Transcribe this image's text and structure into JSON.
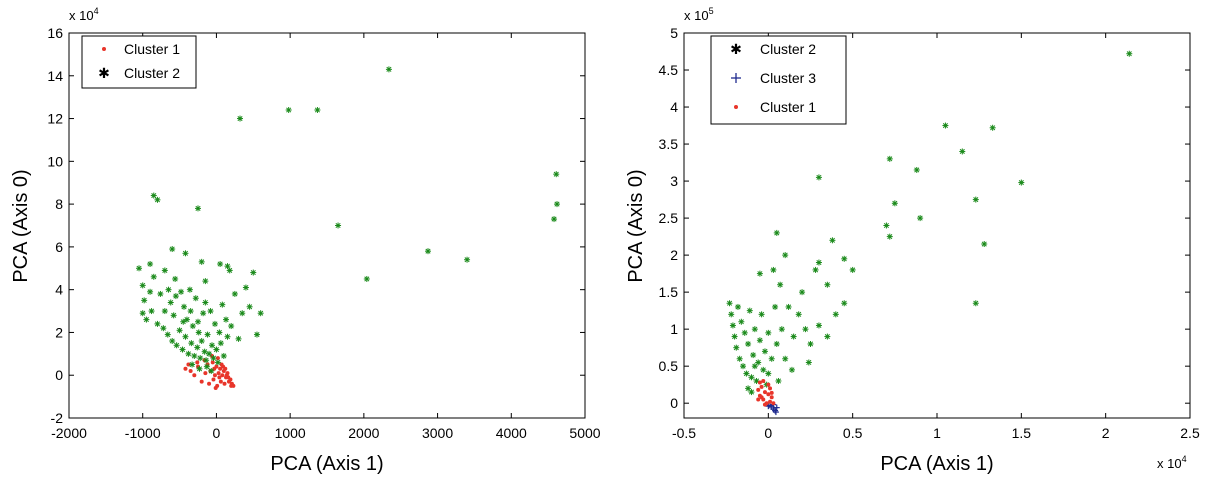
{
  "chart_data": [
    {
      "type": "scatter",
      "xlabel": "PCA (Axis 1)",
      "ylabel": "PCA (Axis 0)",
      "xlim": [
        -2000,
        5000
      ],
      "ylim": [
        -2,
        16
      ],
      "x_ticks": [
        "-2000",
        "-1000",
        "0",
        "1000",
        "2000",
        "3000",
        "4000",
        "5000"
      ],
      "y_ticks": [
        "-2",
        "0",
        "2",
        "4",
        "6",
        "8",
        "10",
        "12",
        "14",
        "16"
      ],
      "y_multiplier": "x 10",
      "y_multiplier_exp": "4",
      "grid": false,
      "legend_position": "top-left",
      "legend": [
        "Cluster 1",
        "Cluster 2"
      ],
      "series": [
        {
          "name": "Cluster 1",
          "marker": "dot",
          "color": "#e8352a",
          "points": [
            [
              -350,
              0.2
            ],
            [
              -300,
              0.0
            ],
            [
              -250,
              0.4
            ],
            [
              -200,
              -0.3
            ],
            [
              -150,
              0.1
            ],
            [
              -120,
              0.5
            ],
            [
              -100,
              -0.4
            ],
            [
              -80,
              0.2
            ],
            [
              -50,
              0.6
            ],
            [
              -40,
              -0.2
            ],
            [
              -20,
              0.0
            ],
            [
              0,
              0.4
            ],
            [
              10,
              -0.5
            ],
            [
              30,
              0.1
            ],
            [
              50,
              0.3
            ],
            [
              60,
              -0.3
            ],
            [
              80,
              0.0
            ],
            [
              100,
              0.2
            ],
            [
              110,
              -0.4
            ],
            [
              130,
              -0.1
            ],
            [
              150,
              0.1
            ],
            [
              170,
              -0.3
            ],
            [
              190,
              -0.2
            ],
            [
              210,
              -0.4
            ],
            [
              230,
              -0.5
            ],
            [
              -60,
              0.9
            ],
            [
              -160,
              0.7
            ],
            [
              -260,
              0.6
            ],
            [
              20,
              0.8
            ],
            [
              70,
              0.5
            ],
            [
              -380,
              0.5
            ],
            [
              -420,
              0.3
            ],
            [
              -10,
              -0.6
            ],
            [
              120,
              0.3
            ],
            [
              160,
              -0.1
            ],
            [
              200,
              -0.5
            ],
            [
              -30,
              0.3
            ],
            [
              40,
              -0.1
            ],
            [
              90,
              0.4
            ],
            [
              140,
              0.0
            ]
          ]
        },
        {
          "name": "Cluster 2",
          "marker": "star",
          "color": "#1a8a1a",
          "points": [
            [
              -1050,
              5.0
            ],
            [
              -1000,
              4.2
            ],
            [
              -980,
              3.5
            ],
            [
              -950,
              2.6
            ],
            [
              -900,
              5.2
            ],
            [
              -880,
              3.0
            ],
            [
              -850,
              4.6
            ],
            [
              -800,
              2.4
            ],
            [
              -760,
              3.8
            ],
            [
              -720,
              2.2
            ],
            [
              -700,
              4.9
            ],
            [
              -660,
              1.9
            ],
            [
              -620,
              3.4
            ],
            [
              -600,
              1.6
            ],
            [
              -580,
              2.8
            ],
            [
              -560,
              4.5
            ],
            [
              -540,
              1.4
            ],
            [
              -500,
              2.1
            ],
            [
              -480,
              3.9
            ],
            [
              -460,
              1.2
            ],
            [
              -440,
              3.2
            ],
            [
              -420,
              1.8
            ],
            [
              -400,
              2.6
            ],
            [
              -380,
              1.0
            ],
            [
              -360,
              4.0
            ],
            [
              -340,
              1.5
            ],
            [
              -320,
              2.3
            ],
            [
              -300,
              0.9
            ],
            [
              -280,
              3.6
            ],
            [
              -260,
              1.3
            ],
            [
              -240,
              2.0
            ],
            [
              -220,
              0.8
            ],
            [
              -200,
              1.6
            ],
            [
              -180,
              2.9
            ],
            [
              -160,
              1.1
            ],
            [
              -140,
              0.7
            ],
            [
              -120,
              1.9
            ],
            [
              -100,
              1.0
            ],
            [
              -80,
              3.0
            ],
            [
              -60,
              1.4
            ],
            [
              -40,
              0.8
            ],
            [
              -20,
              2.4
            ],
            [
              0,
              1.2
            ],
            [
              20,
              0.6
            ],
            [
              40,
              2.0
            ],
            [
              60,
              1.5
            ],
            [
              80,
              3.3
            ],
            [
              100,
              0.9
            ],
            [
              130,
              2.6
            ],
            [
              150,
              1.8
            ],
            [
              200,
              2.3
            ],
            [
              250,
              3.8
            ],
            [
              300,
              1.7
            ],
            [
              350,
              2.9
            ],
            [
              400,
              4.1
            ],
            [
              450,
              3.2
            ],
            [
              500,
              4.8
            ],
            [
              550,
              1.9
            ],
            [
              600,
              2.9
            ],
            [
              -200,
              5.3
            ],
            [
              -150,
              4.4
            ],
            [
              50,
              5.2
            ],
            [
              150,
              5.1
            ],
            [
              180,
              4.9
            ],
            [
              -420,
              5.7
            ],
            [
              -600,
              5.9
            ],
            [
              -850,
              8.4
            ],
            [
              -800,
              8.2
            ],
            [
              -250,
              7.8
            ],
            [
              320,
              12.0
            ],
            [
              980,
              12.4
            ],
            [
              1370,
              12.4
            ],
            [
              2340,
              14.3
            ],
            [
              1650,
              7.0
            ],
            [
              2040,
              4.5
            ],
            [
              2870,
              5.8
            ],
            [
              3400,
              5.4
            ],
            [
              4580,
              7.3
            ],
            [
              4620,
              8.0
            ],
            [
              4610,
              9.4
            ],
            [
              -330,
              0.5
            ],
            [
              -230,
              0.3
            ],
            [
              -130,
              0.4
            ],
            [
              -70,
              0.2
            ],
            [
              -700,
              3.0
            ],
            [
              -900,
              3.9
            ],
            [
              -1000,
              2.9
            ],
            [
              -650,
              4.0
            ],
            [
              -550,
              3.7
            ],
            [
              -450,
              2.5
            ],
            [
              -350,
              3.0
            ],
            [
              -250,
              2.5
            ],
            [
              -150,
              3.4
            ]
          ]
        }
      ]
    },
    {
      "type": "scatter",
      "xlabel": "PCA (Axis 1)",
      "ylabel": "PCA (Axis 0)",
      "xlim": [
        -0.5,
        2.5
      ],
      "ylim": [
        -0.2,
        5
      ],
      "x_ticks": [
        "-0.5",
        "0",
        "0.5",
        "1",
        "1.5",
        "2",
        "2.5"
      ],
      "y_ticks": [
        "0",
        "0.5",
        "1",
        "1.5",
        "2",
        "2.5",
        "3",
        "3.5",
        "4",
        "4.5",
        "5"
      ],
      "x_multiplier": "x 10",
      "x_multiplier_exp": "4",
      "y_multiplier": "x 10",
      "y_multiplier_exp": "5",
      "grid": false,
      "legend_position": "top-left",
      "legend": [
        "Cluster 2",
        "Cluster 3",
        "Cluster 1"
      ],
      "series": [
        {
          "name": "Cluster 2",
          "marker": "star",
          "color": "#1a8a1a",
          "points": [
            [
              -0.23,
              1.35
            ],
            [
              -0.22,
              1.2
            ],
            [
              -0.21,
              1.05
            ],
            [
              -0.2,
              0.9
            ],
            [
              -0.19,
              0.75
            ],
            [
              -0.18,
              1.3
            ],
            [
              -0.17,
              0.6
            ],
            [
              -0.16,
              1.1
            ],
            [
              -0.15,
              0.5
            ],
            [
              -0.14,
              0.95
            ],
            [
              -0.13,
              0.4
            ],
            [
              -0.12,
              0.8
            ],
            [
              -0.11,
              1.25
            ],
            [
              -0.1,
              0.35
            ],
            [
              -0.09,
              0.65
            ],
            [
              -0.08,
              1.0
            ],
            [
              -0.07,
              0.3
            ],
            [
              -0.06,
              0.55
            ],
            [
              -0.05,
              0.85
            ],
            [
              -0.04,
              1.2
            ],
            [
              -0.03,
              0.45
            ],
            [
              -0.02,
              0.7
            ],
            [
              -0.01,
              0.25
            ],
            [
              0.0,
              0.95
            ],
            [
              0.02,
              0.6
            ],
            [
              0.04,
              1.3
            ],
            [
              0.05,
              0.8
            ],
            [
              0.07,
              1.6
            ],
            [
              0.08,
              1.0
            ],
            [
              0.1,
              2.0
            ],
            [
              0.12,
              1.3
            ],
            [
              0.05,
              2.3
            ],
            [
              0.03,
              1.8
            ],
            [
              -0.05,
              1.75
            ],
            [
              0.15,
              0.9
            ],
            [
              0.18,
              1.2
            ],
            [
              0.2,
              1.5
            ],
            [
              0.25,
              0.8
            ],
            [
              0.28,
              1.8
            ],
            [
              0.3,
              1.9
            ],
            [
              0.35,
              1.6
            ],
            [
              0.4,
              1.2
            ],
            [
              0.45,
              1.95
            ],
            [
              0.45,
              1.35
            ],
            [
              0.5,
              1.8
            ],
            [
              0.38,
              2.2
            ],
            [
              0.35,
              0.9
            ],
            [
              0.3,
              1.05
            ],
            [
              0.22,
              1.0
            ],
            [
              0.3,
              3.05
            ],
            [
              0.7,
              2.4
            ],
            [
              0.72,
              2.25
            ],
            [
              0.72,
              3.3
            ],
            [
              0.75,
              2.7
            ],
            [
              0.88,
              3.15
            ],
            [
              0.9,
              2.5
            ],
            [
              1.05,
              3.75
            ],
            [
              1.15,
              3.4
            ],
            [
              1.23,
              2.75
            ],
            [
              1.28,
              2.15
            ],
            [
              1.33,
              3.72
            ],
            [
              1.23,
              1.35
            ],
            [
              1.5,
              2.98
            ],
            [
              2.14,
              4.72
            ],
            [
              -0.12,
              0.2
            ],
            [
              -0.1,
              0.15
            ],
            [
              -0.08,
              0.5
            ],
            [
              0.0,
              0.4
            ],
            [
              0.06,
              0.3
            ],
            [
              0.1,
              0.6
            ],
            [
              0.14,
              0.45
            ],
            [
              0.24,
              0.55
            ]
          ]
        },
        {
          "name": "Cluster 3",
          "marker": "plus",
          "color": "#1f2b8f",
          "points": [
            [
              0.02,
              -0.05
            ],
            [
              0.03,
              -0.08
            ],
            [
              0.04,
              -0.1
            ],
            [
              0.05,
              -0.06
            ],
            [
              0.01,
              -0.03
            ],
            [
              0.0,
              -0.04
            ],
            [
              0.045,
              -0.12
            ],
            [
              0.03,
              -0.02
            ]
          ]
        },
        {
          "name": "Cluster 1",
          "marker": "dot",
          "color": "#e8352a",
          "points": [
            [
              -0.06,
              0.18
            ],
            [
              -0.05,
              0.1
            ],
            [
              -0.04,
              0.22
            ],
            [
              -0.03,
              0.05
            ],
            [
              -0.02,
              0.15
            ],
            [
              -0.01,
              0.0
            ],
            [
              0.0,
              0.12
            ],
            [
              0.01,
              0.02
            ],
            [
              0.02,
              0.08
            ],
            [
              -0.05,
              0.28
            ],
            [
              -0.03,
              0.3
            ],
            [
              0.01,
              0.2
            ],
            [
              0.03,
              0.0
            ],
            [
              -0.02,
              -0.02
            ],
            [
              0.0,
              0.25
            ],
            [
              -0.04,
              0.08
            ],
            [
              0.02,
              0.14
            ],
            [
              -0.06,
              0.05
            ]
          ]
        }
      ]
    }
  ]
}
